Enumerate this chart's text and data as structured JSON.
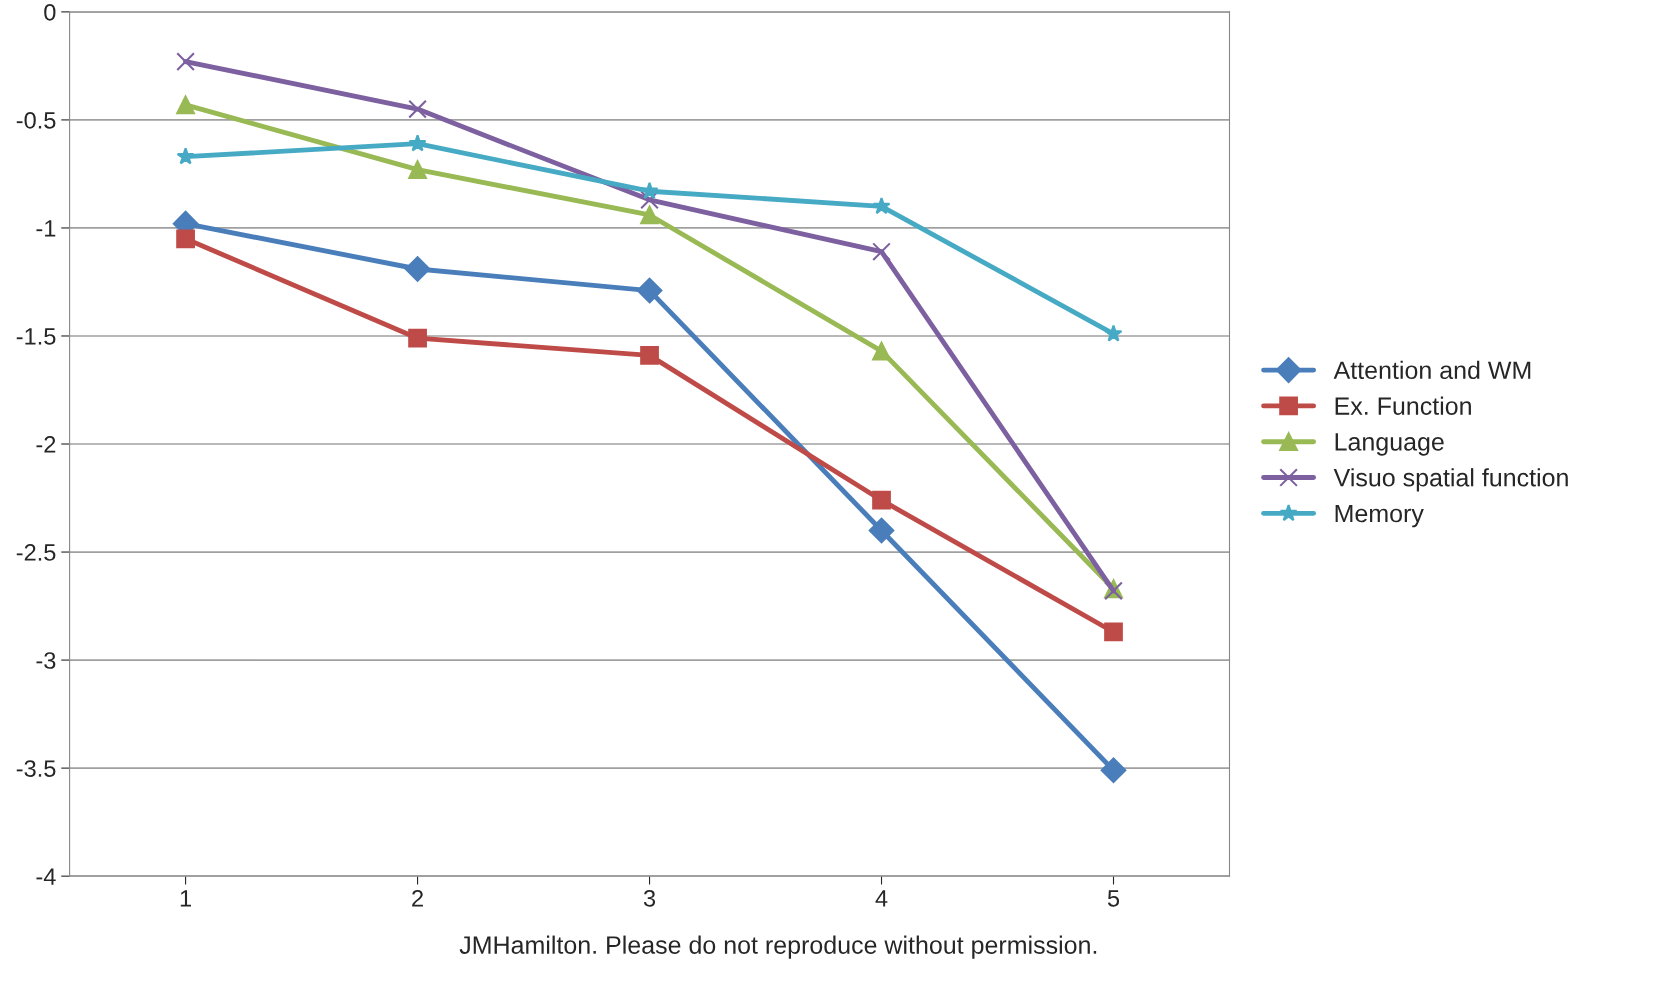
{
  "chart_data": {
    "type": "line",
    "categories": [
      "1",
      "2",
      "3",
      "4",
      "5"
    ],
    "ylim": [
      -4,
      0
    ],
    "yticks": [
      -4,
      -3.5,
      -3,
      -2.5,
      -2,
      -1.5,
      -1,
      -0.5,
      0
    ],
    "grid": "y",
    "legend": "right",
    "line_style": "solid",
    "annotations": [
      "JMHamilton. Please do not reproduce without permission."
    ],
    "series": [
      {
        "name": "Attention and WM",
        "color": "#4a7ebb",
        "marker": "diamond",
        "values": [
          -0.98,
          -1.19,
          -1.29,
          -2.4,
          -3.51
        ]
      },
      {
        "name": "Ex. Function",
        "color": "#be4b48",
        "marker": "square",
        "values": [
          -1.05,
          -1.51,
          -1.59,
          -2.26,
          -2.87
        ]
      },
      {
        "name": "Language",
        "color": "#98b954",
        "marker": "triangle",
        "values": [
          -0.43,
          -0.73,
          -0.94,
          -1.57,
          -2.67
        ]
      },
      {
        "name": "Visuo spatial function",
        "color": "#7d60a0",
        "marker": "cross",
        "values": [
          -0.23,
          -0.45,
          -0.87,
          -1.11,
          -2.68
        ]
      },
      {
        "name": "Memory",
        "color": "#46aac5",
        "marker": "star",
        "values": [
          -0.67,
          -0.61,
          -0.83,
          -0.9,
          -1.49
        ]
      }
    ]
  }
}
